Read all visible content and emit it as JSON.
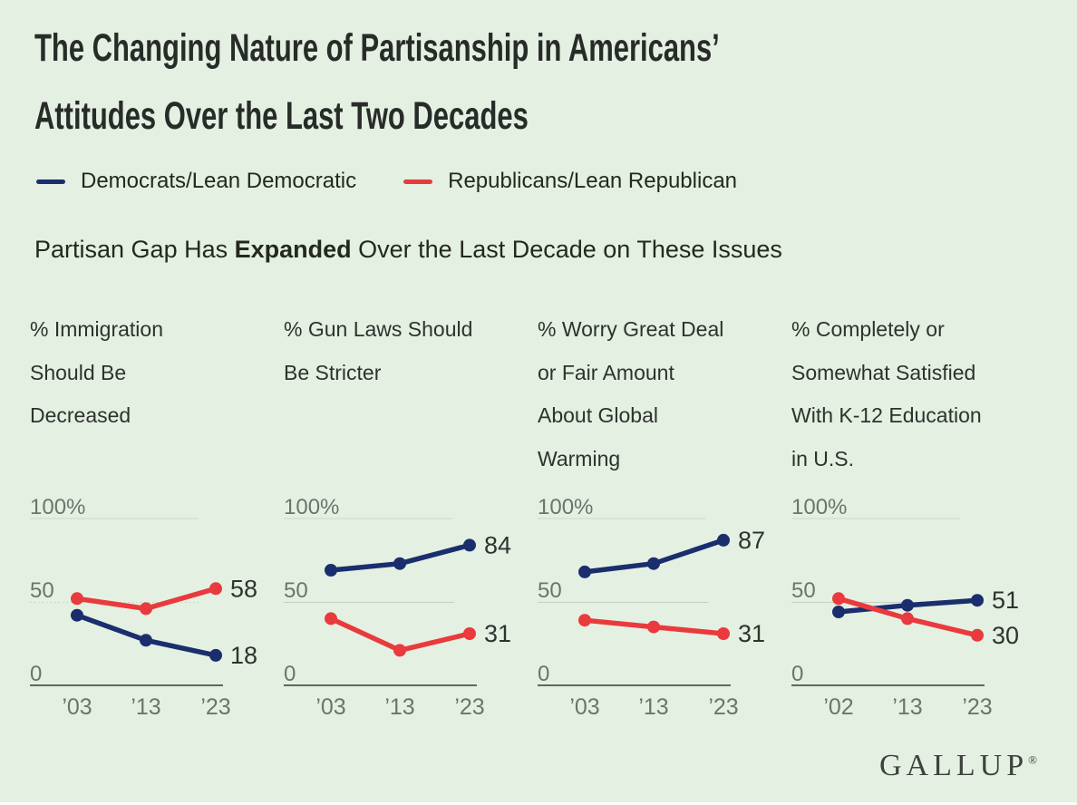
{
  "page": {
    "background_color": "#e4f0e2"
  },
  "title": {
    "line1": "The Changing Nature of Partisanship in Americans’",
    "line2": "Attitudes Over the Last Two Decades"
  },
  "legend": {
    "items": [
      {
        "label": "Democrats/Lean Democratic",
        "color": "#1a2e6e"
      },
      {
        "label": "Republicans/Lean Republican",
        "color": "#e93a3d"
      }
    ]
  },
  "subtitle": {
    "prefix": "Partisan Gap Has ",
    "bold": "Expanded",
    "suffix": " Over the Last Decade on These Issues"
  },
  "chart_data": [
    {
      "type": "line",
      "title_lines": [
        "% Immigration",
        "Should Be",
        "Decreased"
      ],
      "categories": [
        "’03",
        "’13",
        "’23"
      ],
      "ylim": [
        0,
        100
      ],
      "yticks": [
        "100%",
        "50",
        "0"
      ],
      "gridline_50": "dotted",
      "legend_position": "top",
      "series": [
        {
          "name": "Democrats/Lean Democratic",
          "color": "#1a2e6e",
          "values": [
            42,
            27,
            18
          ],
          "end_label": "18"
        },
        {
          "name": "Republicans/Lean Republican",
          "color": "#e93a3d",
          "values": [
            52,
            46,
            58
          ],
          "end_label": "58"
        }
      ]
    },
    {
      "type": "line",
      "title_lines": [
        "% Gun Laws Should",
        "Be Stricter"
      ],
      "categories": [
        "’03",
        "’13",
        "’23"
      ],
      "ylim": [
        0,
        100
      ],
      "yticks": [
        "100%",
        "50",
        "0"
      ],
      "gridline_50": "solid",
      "legend_position": "top",
      "series": [
        {
          "name": "Democrats/Lean Democratic",
          "color": "#1a2e6e",
          "values": [
            69,
            73,
            84
          ],
          "end_label": "84"
        },
        {
          "name": "Republicans/Lean Republican",
          "color": "#e93a3d",
          "values": [
            40,
            21,
            31
          ],
          "end_label": "31"
        }
      ]
    },
    {
      "type": "line",
      "title_lines": [
        "% Worry Great Deal",
        "or Fair Amount",
        "About Global",
        "Warming"
      ],
      "categories": [
        "’03",
        "’13",
        "’23"
      ],
      "ylim": [
        0,
        100
      ],
      "yticks": [
        "100%",
        "50",
        "0"
      ],
      "gridline_50": "solid",
      "legend_position": "top",
      "series": [
        {
          "name": "Democrats/Lean Democratic",
          "color": "#1a2e6e",
          "values": [
            68,
            73,
            87
          ],
          "end_label": "87"
        },
        {
          "name": "Republicans/Lean Republican",
          "color": "#e93a3d",
          "values": [
            39,
            35,
            31
          ],
          "end_label": "31"
        }
      ]
    },
    {
      "type": "line",
      "title_lines": [
        "% Completely or",
        "Somewhat Satisfied",
        "With K-12 Education",
        "in U.S."
      ],
      "categories": [
        "’02",
        "’13",
        "’23"
      ],
      "ylim": [
        0,
        100
      ],
      "yticks": [
        "100%",
        "50",
        "0"
      ],
      "gridline_50": "solid",
      "legend_position": "top",
      "series": [
        {
          "name": "Democrats/Lean Democratic",
          "color": "#1a2e6e",
          "values": [
            44,
            48,
            51
          ],
          "end_label": "51"
        },
        {
          "name": "Republicans/Lean Republican",
          "color": "#e93a3d",
          "values": [
            52,
            40,
            30
          ],
          "end_label": "30"
        }
      ]
    }
  ],
  "footer": {
    "logo": "GALLUP",
    "registered": "®"
  }
}
